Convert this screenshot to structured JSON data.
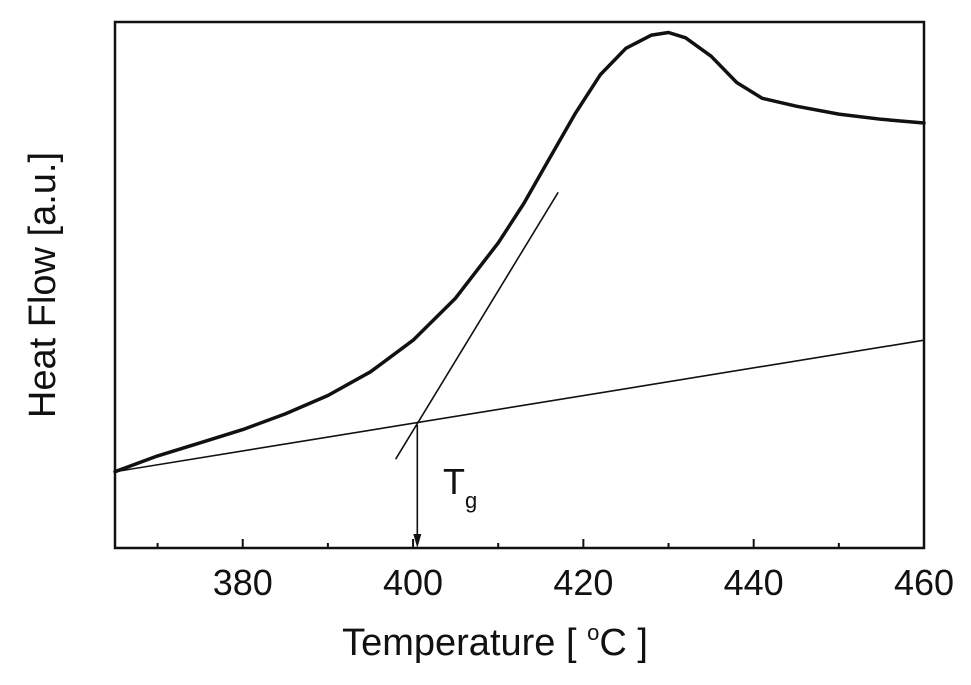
{
  "chart_data": {
    "type": "line",
    "xlabel_main": "Temperature [ ",
    "xlabel_deg": "o",
    "xlabel_unit": "C ]",
    "ylabel": "Heat Flow [a.u.]",
    "xlim": [
      365,
      460
    ],
    "ylim": [
      0,
      100
    ],
    "x_ticks": [
      380,
      400,
      420,
      440,
      460
    ],
    "y_ticks_shown": false,
    "grid": false,
    "series": [
      {
        "role": "dsc-curve",
        "x": [
          365,
          370,
          375,
          380,
          385,
          390,
          395,
          400,
          405,
          410,
          413,
          416,
          419,
          422,
          425,
          428,
          430,
          432,
          435,
          438,
          441,
          445,
          450,
          455,
          460
        ],
        "y": [
          14.5,
          17.5,
          20,
          22.5,
          25.5,
          29,
          33.5,
          39.5,
          47.5,
          58,
          65.5,
          74,
          82.5,
          90,
          95,
          97.5,
          98,
          97,
          93.5,
          88.5,
          85.5,
          84,
          82.5,
          81.5,
          80.8
        ]
      },
      {
        "role": "baseline-tangent",
        "x": [
          365,
          460
        ],
        "y": [
          14.5,
          39.5
        ]
      },
      {
        "role": "inflection-tangent",
        "x": [
          398,
          417
        ],
        "y": [
          17,
          67.5
        ]
      }
    ],
    "annotation": {
      "label_main": "T",
      "label_sub": "g",
      "arrow_x": 400.5,
      "arrow_from_y": 23.4,
      "arrow_to_y": 0
    }
  }
}
